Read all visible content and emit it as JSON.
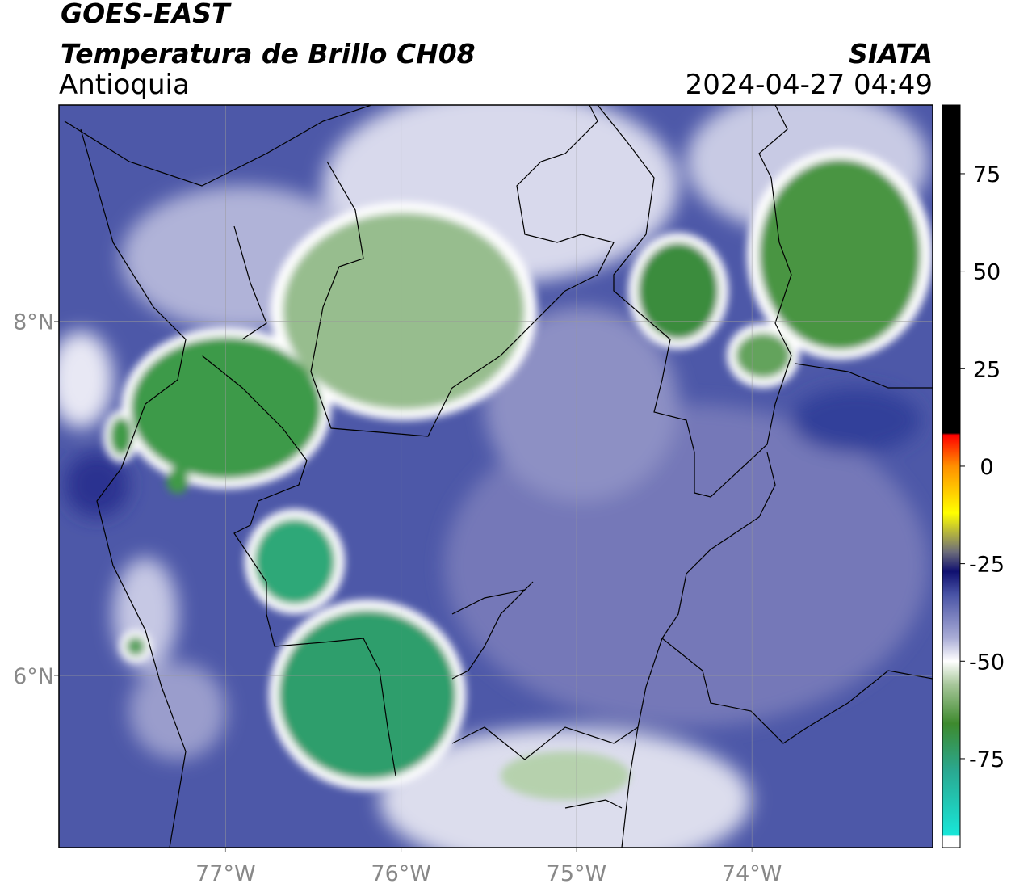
{
  "header": {
    "title": "GOES-EAST",
    "subtitle": "Temperatura de Brillo CH08",
    "region": "Antioquia",
    "source": "SIATA",
    "datetime": "2024-04-27 04:49"
  },
  "map": {
    "xlim": [
      -77.95,
      -72.97
    ],
    "ylim": [
      5.03,
      9.22
    ],
    "xticks": [
      {
        "value": -77,
        "label": "77°W"
      },
      {
        "value": -76,
        "label": "76°W"
      },
      {
        "value": -75,
        "label": "75°W"
      },
      {
        "value": -74,
        "label": "74°W"
      }
    ],
    "yticks": [
      {
        "value": 8,
        "label": "8°N"
      },
      {
        "value": 6,
        "label": "6°N"
      }
    ],
    "grid": true
  },
  "colorbar": {
    "range": [
      -97.8,
      92.6
    ],
    "ticks": [
      75,
      50,
      25,
      0,
      -25,
      -50,
      -75
    ],
    "stops": [
      {
        "value": -97.8,
        "color": "#ffffff"
      },
      {
        "value": -95,
        "color": "#ffffff"
      },
      {
        "value": -94.5,
        "color": "#18e6d8"
      },
      {
        "value": -78,
        "color": "#2aa890"
      },
      {
        "value": -66,
        "color": "#3e8a2e"
      },
      {
        "value": -56,
        "color": "#a7c79a"
      },
      {
        "value": -50,
        "color": "#ffffff"
      },
      {
        "value": -44,
        "color": "#a9acd6"
      },
      {
        "value": -33,
        "color": "#4a54a6"
      },
      {
        "value": -27,
        "color": "#101070"
      },
      {
        "value": -22,
        "color": "#6c6c7a"
      },
      {
        "value": -12,
        "color": "#ffff00"
      },
      {
        "value": 0,
        "color": "#ff9000"
      },
      {
        "value": 8,
        "color": "#ff0000"
      },
      {
        "value": 8.5,
        "color": "#000000"
      },
      {
        "value": 92.6,
        "color": "#000000"
      }
    ]
  }
}
